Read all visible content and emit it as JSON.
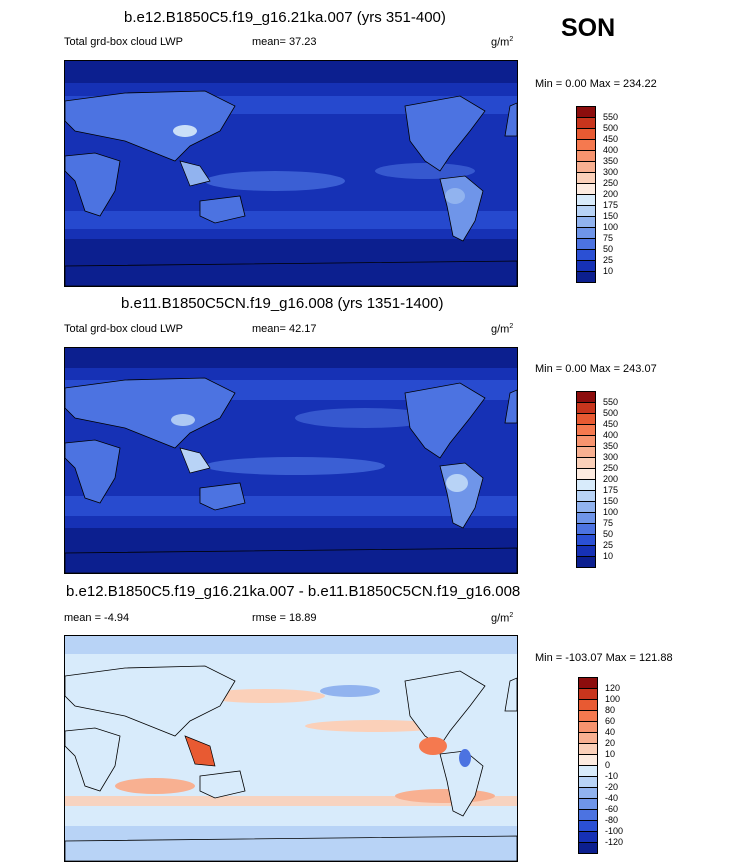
{
  "season": "SON",
  "panels": [
    {
      "title": "b.e12.B1850C5.f19_g16.21ka.007 (yrs 351-400)",
      "left_label": "Total grd-box cloud LWP",
      "stat1": "mean=  37.23",
      "stat2": "",
      "units": "g/m",
      "units_exp": "2",
      "minmax": "Min =   0.00 Max = 234.22",
      "levels": [
        "550",
        "500",
        "450",
        "400",
        "350",
        "300",
        "250",
        "200",
        "175",
        "150",
        "100",
        "75",
        "50",
        "25",
        "10"
      ],
      "colors": [
        "#8c0d0d",
        "#c8351d",
        "#e85a32",
        "#f5794f",
        "#f7946f",
        "#f8b091",
        "#fbd0b9",
        "#fdebe0",
        "#d8ebfb",
        "#b8d3f6",
        "#91b3ef",
        "#6f95e9",
        "#4c73e1",
        "#2b50d4",
        "#1631b5",
        "#0c1f8f"
      ]
    },
    {
      "title": "b.e11.B1850C5CN.f19_g16.008 (yrs 1351-1400)",
      "left_label": "Total grd-box cloud LWP",
      "stat1": "mean=  42.17",
      "stat2": "",
      "units": "g/m",
      "units_exp": "2",
      "minmax": "Min =   0.00 Max = 243.07",
      "levels": [
        "550",
        "500",
        "450",
        "400",
        "350",
        "300",
        "250",
        "200",
        "175",
        "150",
        "100",
        "75",
        "50",
        "25",
        "10"
      ],
      "colors": [
        "#8c0d0d",
        "#c8351d",
        "#e85a32",
        "#f5794f",
        "#f7946f",
        "#f8b091",
        "#fbd0b9",
        "#fdebe0",
        "#d8ebfb",
        "#b8d3f6",
        "#91b3ef",
        "#6f95e9",
        "#4c73e1",
        "#2b50d4",
        "#1631b5",
        "#0c1f8f"
      ]
    },
    {
      "title": "b.e12.B1850C5.f19_g16.21ka.007 - b.e11.B1850C5CN.f19_g16.008",
      "left_label": "mean =  -4.94",
      "stat1": "",
      "stat2": "rmse =  18.89",
      "units": "g/m",
      "units_exp": "2",
      "minmax": "Min = -103.07 Max = 121.88",
      "levels": [
        "120",
        "100",
        "80",
        "60",
        "40",
        "20",
        "10",
        "0",
        "-10",
        "-20",
        "-40",
        "-60",
        "-80",
        "-100",
        "-120"
      ],
      "colors": [
        "#8c0d0d",
        "#c8351d",
        "#e85a32",
        "#f5794f",
        "#f7946f",
        "#f8b091",
        "#fbd0b9",
        "#fdebe0",
        "#d8ebfb",
        "#b8d3f6",
        "#91b3ef",
        "#6f95e9",
        "#4c73e1",
        "#2b50d4",
        "#1631b5",
        "#0c1f8f"
      ]
    }
  ],
  "chart_data": [
    {
      "type": "heatmap",
      "title": "b.e12.B1850C5.f19_g16.21ka.007 (yrs 351-400)",
      "variable": "Total grd-box cloud LWP",
      "units": "g/m2",
      "mean": 37.23,
      "min": 0.0,
      "max": 234.22,
      "contour_levels": [
        10,
        25,
        50,
        75,
        100,
        150,
        175,
        200,
        250,
        300,
        350,
        400,
        450,
        500,
        550
      ]
    },
    {
      "type": "heatmap",
      "title": "b.e11.B1850C5CN.f19_g16.008 (yrs 1351-1400)",
      "variable": "Total grd-box cloud LWP",
      "units": "g/m2",
      "mean": 42.17,
      "min": 0.0,
      "max": 243.07,
      "contour_levels": [
        10,
        25,
        50,
        75,
        100,
        150,
        175,
        200,
        250,
        300,
        350,
        400,
        450,
        500,
        550
      ]
    },
    {
      "type": "heatmap",
      "title": "b.e12.B1850C5.f19_g16.21ka.007 - b.e11.B1850C5CN.f19_g16.008",
      "units": "g/m2",
      "mean": -4.94,
      "rmse": 18.89,
      "min": -103.07,
      "max": 121.88,
      "contour_levels": [
        -120,
        -100,
        -80,
        -60,
        -40,
        -20,
        -10,
        0,
        10,
        20,
        40,
        60,
        80,
        100,
        120
      ]
    }
  ]
}
